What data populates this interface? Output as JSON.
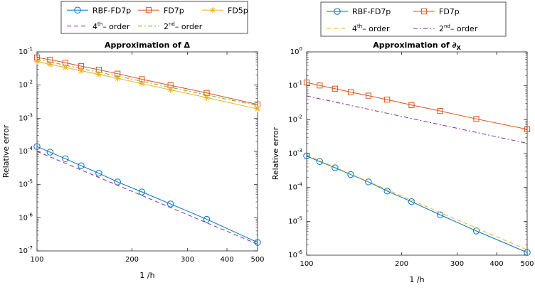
{
  "colors": {
    "rbf": "#0072BD",
    "fd7": "#D95319",
    "fd5": "#EDB120",
    "ref4_left": "#7E2F8E",
    "ref2_left": "#77AC30",
    "ref4_right": "#EDB120",
    "ref2_right": "#7E2F8E"
  },
  "chart_data": [
    {
      "type": "line",
      "title": "Approximation of Δ",
      "xlabel": "1 /h",
      "ylabel": "Relative error",
      "xscale": "log",
      "yscale": "log",
      "xlim": [
        100,
        500
      ],
      "ylim_exp": [
        -7,
        -1
      ],
      "xticks": [
        100,
        200,
        300,
        400,
        500
      ],
      "xtick_labels": [
        "100",
        "200",
        "300",
        "400",
        "500"
      ],
      "ytick_exp": [
        -7,
        -6,
        -5,
        -4,
        -3,
        -2,
        -1
      ],
      "grid": false,
      "legend": {
        "placement": "top-left, above plot",
        "entries": [
          {
            "label": "RBF-FD7p",
            "series": "rbf"
          },
          {
            "label": "FD7p",
            "series": "fd7"
          },
          {
            "label": "FD5p",
            "series": "fd5"
          },
          {
            "label_pre": "4",
            "label_sup": "th",
            "label_post": "– order",
            "series": "ref4"
          },
          {
            "label_pre": "2",
            "label_sup": "nd",
            "label_post": "– order",
            "series": "ref2"
          }
        ]
      },
      "series": [
        {
          "key": "rbf",
          "name": "RBF-FD7p",
          "marker": "circle",
          "dash": "none",
          "x": [
            100,
            110,
            123,
            138,
            157,
            180,
            215,
            265,
            345,
            500
          ],
          "y": [
            0.00014,
            9.5e-05,
            6e-05,
            3.7e-05,
            2.2e-05,
            1.2e-05,
            6e-06,
            2.6e-06,
            9e-07,
            1.8e-07
          ]
        },
        {
          "key": "fd7",
          "name": "FD7p",
          "marker": "square",
          "dash": "none",
          "x": [
            100,
            110,
            123,
            138,
            157,
            180,
            215,
            265,
            345,
            500
          ],
          "y": [
            0.068,
            0.058,
            0.047,
            0.037,
            0.029,
            0.022,
            0.015,
            0.0098,
            0.0058,
            0.0026
          ]
        },
        {
          "key": "fd5",
          "name": "FD5p",
          "marker": "star",
          "dash": "none",
          "x": [
            100,
            110,
            123,
            138,
            157,
            180,
            215,
            265,
            345,
            500
          ],
          "y": [
            0.052,
            0.042,
            0.034,
            0.027,
            0.021,
            0.016,
            0.011,
            0.0072,
            0.0042,
            0.0019
          ]
        },
        {
          "key": "ref4",
          "name": "4th – order",
          "marker": "none",
          "dash": "6,4",
          "x": [
            100,
            500
          ],
          "y": [
            0.0001,
            1.6e-07
          ]
        },
        {
          "key": "ref2",
          "name": "2nd – order",
          "marker": "none",
          "dash": "6,3,2,3",
          "x": [
            100,
            500
          ],
          "y": [
            0.06,
            0.0024
          ]
        }
      ]
    },
    {
      "type": "line",
      "title_pre": "Approximation of ∂",
      "title_sub": "X",
      "xlabel": "1 /h",
      "ylabel": "Relative error",
      "xscale": "log",
      "yscale": "log",
      "xlim": [
        100,
        500
      ],
      "ylim_exp": [
        -6,
        0
      ],
      "xticks": [
        100,
        200,
        300,
        400,
        500
      ],
      "xtick_labels": [
        "100",
        "200",
        "300",
        "400",
        "500"
      ],
      "ytick_exp": [
        -6,
        -5,
        -4,
        -3,
        -2,
        -1,
        0
      ],
      "grid": false,
      "legend": {
        "placement": "top-left, above plot",
        "entries": [
          {
            "label": "RBF-FD7p",
            "series": "rbf"
          },
          {
            "label": "FD7p",
            "series": "fd7"
          },
          {
            "label_pre": "4",
            "label_sup": "th",
            "label_post": "– order",
            "series": "ref4"
          },
          {
            "label_pre": "2",
            "label_sup": "nd",
            "label_post": "– order",
            "series": "ref2"
          }
        ]
      },
      "series": [
        {
          "key": "rbf",
          "name": "RBF-FD7p",
          "marker": "circle",
          "dash": "none",
          "x": [
            100,
            110,
            123,
            138,
            157,
            180,
            215,
            265,
            345,
            500
          ],
          "y": [
            0.00085,
            0.00058,
            0.00038,
            0.00024,
            0.000145,
            7.8e-05,
            3.8e-05,
            1.55e-05,
            5.2e-06,
            1.2e-06
          ]
        },
        {
          "key": "fd7",
          "name": "FD7p",
          "marker": "square",
          "dash": "none",
          "x": [
            100,
            110,
            123,
            138,
            157,
            180,
            215,
            265,
            345,
            500
          ],
          "y": [
            0.125,
            0.102,
            0.082,
            0.065,
            0.051,
            0.039,
            0.027,
            0.018,
            0.0105,
            0.0052
          ]
        },
        {
          "key": "ref4",
          "name": "4th – order",
          "marker": "none",
          "dash": "6,4",
          "x": [
            100,
            500
          ],
          "y": [
            0.0009,
            1.44e-06
          ]
        },
        {
          "key": "ref2",
          "name": "2nd – order",
          "marker": "none",
          "dash": "6,3,2,3",
          "x": [
            100,
            500
          ],
          "y": [
            0.05,
            0.002
          ]
        }
      ]
    }
  ]
}
